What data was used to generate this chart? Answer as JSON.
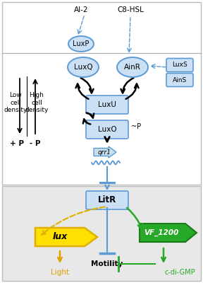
{
  "box_fill": "#cce0f5",
  "box_edge": "#5b9bd5",
  "arrow_black": "#1a1a1a",
  "blue_line": "#5b9bd5",
  "yellow_fill": "#ffe000",
  "yellow_edge": "#e0b000",
  "yellow_text": "#e0a000",
  "green_fill": "#28a828",
  "green_edge": "#1a7a1a",
  "green_text": "#28a828",
  "AI2_label": "AI-2",
  "C8HSL_label": "C8-HSL",
  "LuxP_label": "LuxP",
  "LuxQ_label": "LuxQ",
  "AinR_label": "AinR",
  "LuxS_label": "LuxS",
  "AinS_label": "AinS",
  "LuxU_label": "LuxU",
  "LuxO_label": "LuxO",
  "P_label": "~P",
  "qrr1_label": "qrr1",
  "LitR_label": "LitR",
  "lux_label": "lux",
  "Light_label": "Light",
  "Motility_label": "Motility",
  "VF1200_label": "VF_1200",
  "cdiGMP_label": "c-di-GMP",
  "low_cell": "Low\ncell\ndensity",
  "high_cell": "High\ncell\ndensity",
  "plus_P": "+ P",
  "minus_P": "- P"
}
